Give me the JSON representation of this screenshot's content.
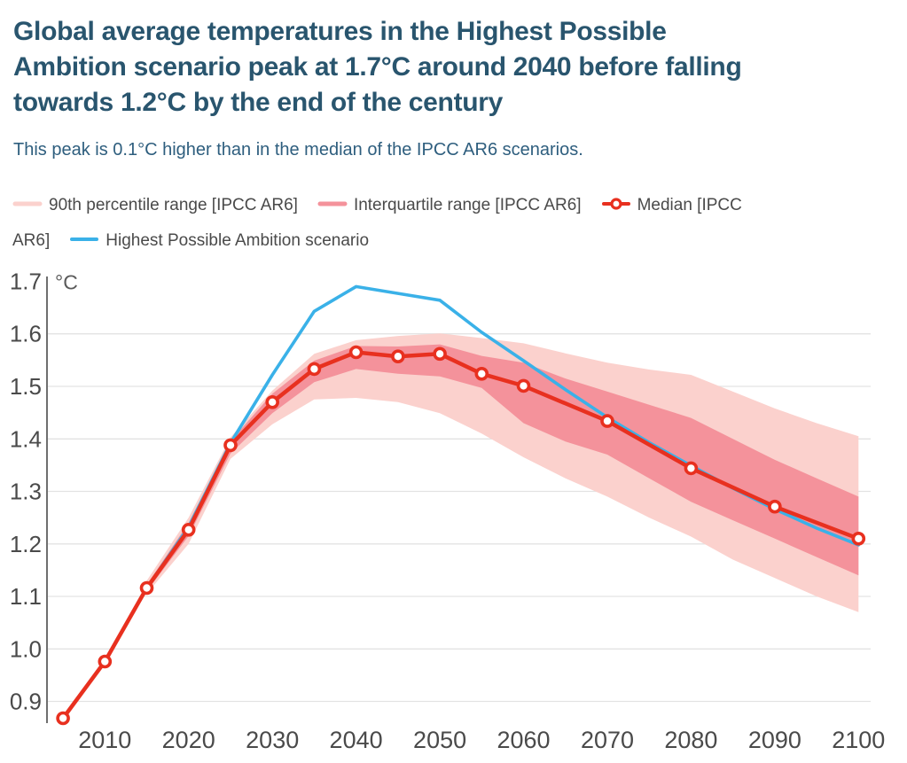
{
  "header": {
    "title": "Global average temperatures in the Highest Possible Ambition scenario peak at 1.7°C around 2040 before falling towards 1.2°C by the end of the century",
    "title_lines": [
      "Global average temperatures in the Highest Possible",
      "Ambition scenario peak at 1.7°C around 2040 before falling",
      "towards 1.2°C by the end of the century"
    ],
    "subtitle": "This peak is 0.1°C higher than in the median of the IPCC AR6 scenarios."
  },
  "colors": {
    "title": "#29556E",
    "subtitle": "#2E5E7E",
    "text": "#4A4A4A",
    "axis_line": "#6F6F6F",
    "gridline": "#E3E3E3",
    "median_red": "#E8301F",
    "scenario_blue": "#3AB1E8",
    "band_90th": "#FBD1CD",
    "band_iqr": "#F4929B",
    "marker_fill": "#FFFFFF"
  },
  "legend": {
    "items": [
      {
        "id": "90th-percentile",
        "swatch": "band-line",
        "color": "#FBD1CD",
        "label": "90th percentile range [IPCC AR6]"
      },
      {
        "id": "interquartile",
        "swatch": "band-line",
        "color": "#F4929B",
        "label": "Interquartile range [IPCC AR6]"
      },
      {
        "id": "median",
        "swatch": "marker-line",
        "color": "#E8301F",
        "label": "Median [IPCC AR6]"
      },
      {
        "id": "hpa-scenario",
        "swatch": "line",
        "color": "#3AB1E8",
        "label": "Highest Possible Ambition scenario"
      }
    ]
  },
  "chart_data": {
    "type": "line",
    "title": "Global average temperatures, Highest Possible Ambition scenario vs IPCC AR6",
    "unit": "°C",
    "ylabel": "°C",
    "xlabel": "",
    "ylim": [
      0.855,
      1.7
    ],
    "xlim": [
      2003,
      2101.5
    ],
    "grid": "horizontal",
    "legend_position": "top",
    "y_ticks": [
      1.7,
      1.6,
      1.5,
      1.4,
      1.3,
      1.2,
      1.1,
      1.0,
      0.9
    ],
    "x_ticks": [
      2010,
      2020,
      2030,
      2040,
      2050,
      2060,
      2070,
      2080,
      2090,
      2100
    ],
    "bands": [
      {
        "name": "90th percentile range [IPCC AR6]",
        "color": "#FBD1CD",
        "years": [
          2015,
          2020,
          2025,
          2030,
          2035,
          2040,
          2045,
          2050,
          2055,
          2060,
          2065,
          2070,
          2075,
          2080,
          2085,
          2090,
          2095,
          2100
        ],
        "lower": [
          1.105,
          1.2,
          1.362,
          1.428,
          1.475,
          1.478,
          1.47,
          1.449,
          1.41,
          1.365,
          1.325,
          1.29,
          1.25,
          1.214,
          1.17,
          1.135,
          1.1,
          1.07
        ],
        "upper": [
          1.13,
          1.25,
          1.403,
          1.492,
          1.562,
          1.588,
          1.596,
          1.601,
          1.592,
          1.582,
          1.563,
          1.545,
          1.532,
          1.522,
          1.49,
          1.458,
          1.43,
          1.405
        ]
      },
      {
        "name": "Interquartile range [IPCC AR6]",
        "color": "#F4929B",
        "years": [
          2015,
          2020,
          2025,
          2030,
          2035,
          2040,
          2045,
          2050,
          2055,
          2060,
          2065,
          2070,
          2075,
          2080,
          2085,
          2090,
          2095,
          2100
        ],
        "lower": [
          1.11,
          1.215,
          1.372,
          1.449,
          1.508,
          1.533,
          1.524,
          1.519,
          1.497,
          1.43,
          1.395,
          1.37,
          1.325,
          1.28,
          1.245,
          1.21,
          1.175,
          1.14
        ],
        "upper": [
          1.122,
          1.24,
          1.396,
          1.486,
          1.549,
          1.577,
          1.576,
          1.58,
          1.558,
          1.545,
          1.515,
          1.49,
          1.465,
          1.44,
          1.4,
          1.36,
          1.325,
          1.29
        ]
      }
    ],
    "series": [
      {
        "name": "Highest Possible Ambition scenario",
        "color": "#3AB1E8",
        "marker": "none",
        "years": [
          2015,
          2020,
          2025,
          2030,
          2035,
          2040,
          2045,
          2050,
          2055,
          2060,
          2065,
          2070,
          2075,
          2080,
          2085,
          2090,
          2095,
          2100
        ],
        "values": [
          1.116,
          1.232,
          1.392,
          1.522,
          1.643,
          1.69,
          1.677,
          1.664,
          1.603,
          1.549,
          1.494,
          1.441,
          1.393,
          1.349,
          1.306,
          1.266,
          1.23,
          1.198
        ]
      },
      {
        "name": "Median [IPCC AR6]",
        "color": "#E8301F",
        "marker": "open-circle",
        "years": [
          2005,
          2010,
          2015,
          2020,
          2025,
          2030,
          2035,
          2040,
          2045,
          2050,
          2055,
          2060,
          2070,
          2080,
          2090,
          2100
        ],
        "values": [
          0.868,
          0.976,
          1.116,
          1.227,
          1.388,
          1.47,
          1.533,
          1.565,
          1.557,
          1.562,
          1.524,
          1.501,
          1.434,
          1.344,
          1.271,
          1.21
        ]
      }
    ]
  }
}
